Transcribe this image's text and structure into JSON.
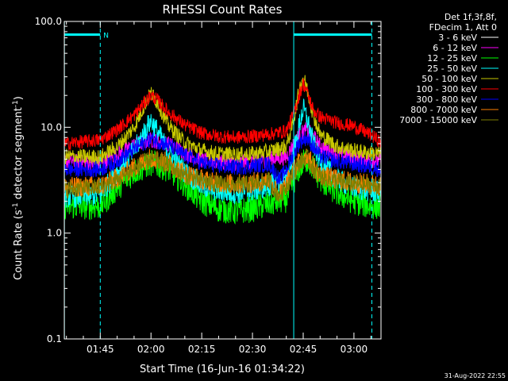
{
  "chart_data": {
    "type": "line",
    "title": "RHESSI Count Rates",
    "xlabel": "Start Time (16-Jun-16 01:34:22)",
    "ylabel_parts": [
      "Count Rate (s",
      "-1",
      " detector segment",
      "-1",
      ")"
    ],
    "y_scale": "log",
    "ylim": [
      0.1,
      100.0
    ],
    "y_ticks": [
      "100.0",
      "10.0",
      "1.0",
      "0.1"
    ],
    "x_range_minutes": [
      34.37,
      93.0
    ],
    "x_ticks": [
      {
        "label": "01:45",
        "minute": 45
      },
      {
        "label": "02:00",
        "minute": 60
      },
      {
        "label": "02:15",
        "minute": 75
      },
      {
        "label": "02:30",
        "minute": 90
      },
      {
        "label": "02:45",
        "minute": 105
      },
      {
        "label": "03:00",
        "minute": 120
      }
    ],
    "legend_header": [
      "Det 1f,3f,8f,",
      "FDecim 1, Att 0"
    ],
    "legend_position": "right-outside",
    "series": [
      {
        "name": "3 - 6 keV",
        "color": "#000000",
        "legend_color": "#ffffff",
        "keypoints": [
          [
            34.4,
            1.5
          ],
          [
            45,
            1.4
          ],
          [
            50,
            2.3
          ],
          [
            55,
            3.3
          ],
          [
            60,
            4.0
          ],
          [
            65,
            3.5
          ],
          [
            70,
            2.3
          ],
          [
            75,
            1.5
          ],
          [
            80,
            1.2
          ],
          [
            85,
            1.1
          ],
          [
            90,
            1.2
          ],
          [
            95,
            1.4
          ],
          [
            100,
            1.6
          ],
          [
            102,
            2.2
          ],
          [
            104,
            3.3
          ],
          [
            106,
            4.0
          ],
          [
            108,
            3.4
          ],
          [
            110,
            2.6
          ],
          [
            115,
            1.9
          ],
          [
            120,
            1.4
          ],
          [
            125,
            1.3
          ],
          [
            128,
            1.3
          ]
        ]
      },
      {
        "name": "6 - 12 keV",
        "color": "#ff00ff",
        "keypoints": [
          [
            34.4,
            4.8
          ],
          [
            45,
            4.5
          ],
          [
            50,
            5.5
          ],
          [
            55,
            6.8
          ],
          [
            60,
            7.6
          ],
          [
            65,
            7.0
          ],
          [
            70,
            5.8
          ],
          [
            75,
            4.9
          ],
          [
            80,
            4.7
          ],
          [
            85,
            4.6
          ],
          [
            90,
            4.7
          ],
          [
            95,
            5.0
          ],
          [
            100,
            5.2
          ],
          [
            102,
            6.8
          ],
          [
            104,
            8.6
          ],
          [
            106,
            9.5
          ],
          [
            108,
            8.2
          ],
          [
            110,
            6.6
          ],
          [
            115,
            5.6
          ],
          [
            120,
            5.1
          ],
          [
            125,
            4.9
          ],
          [
            128,
            4.8
          ]
        ]
      },
      {
        "name": "12 - 25 keV",
        "color": "#00ff00",
        "keypoints": [
          [
            34.4,
            1.8
          ],
          [
            45,
            1.8
          ],
          [
            50,
            2.7
          ],
          [
            55,
            3.8
          ],
          [
            60,
            4.6
          ],
          [
            65,
            4.1
          ],
          [
            70,
            2.9
          ],
          [
            75,
            2.0
          ],
          [
            80,
            1.7
          ],
          [
            85,
            1.6
          ],
          [
            90,
            1.7
          ],
          [
            95,
            1.9
          ],
          [
            100,
            2.1
          ],
          [
            102,
            3.0
          ],
          [
            104,
            4.2
          ],
          [
            106,
            5.0
          ],
          [
            108,
            4.2
          ],
          [
            110,
            3.2
          ],
          [
            115,
            2.4
          ],
          [
            120,
            2.0
          ],
          [
            125,
            1.8
          ],
          [
            128,
            1.8
          ]
        ]
      },
      {
        "name": "25 - 50 keV",
        "color": "#00ffff",
        "keypoints": [
          [
            34.4,
            2.2
          ],
          [
            45,
            2.3
          ],
          [
            50,
            3.8
          ],
          [
            55,
            6.0
          ],
          [
            58,
            9.0
          ],
          [
            60,
            11.5
          ],
          [
            62,
            9.0
          ],
          [
            65,
            6.0
          ],
          [
            70,
            3.8
          ],
          [
            75,
            2.8
          ],
          [
            80,
            2.5
          ],
          [
            85,
            2.4
          ],
          [
            90,
            2.5
          ],
          [
            95,
            2.8
          ],
          [
            100,
            3.2
          ],
          [
            102,
            5.2
          ],
          [
            104,
            11.0
          ],
          [
            105,
            15.0
          ],
          [
            106,
            12.5
          ],
          [
            108,
            7.0
          ],
          [
            110,
            4.8
          ],
          [
            115,
            3.2
          ],
          [
            120,
            2.7
          ],
          [
            125,
            2.5
          ],
          [
            128,
            2.4
          ]
        ]
      },
      {
        "name": "50 - 100 keV",
        "color": "#c8c800",
        "keypoints": [
          [
            34.4,
            5.3
          ],
          [
            45,
            5.2
          ],
          [
            50,
            6.5
          ],
          [
            55,
            10.0
          ],
          [
            58,
            16.0
          ],
          [
            60,
            21.0
          ],
          [
            62,
            17.0
          ],
          [
            65,
            10.5
          ],
          [
            70,
            7.2
          ],
          [
            75,
            6.0
          ],
          [
            80,
            5.6
          ],
          [
            85,
            5.5
          ],
          [
            90,
            5.6
          ],
          [
            95,
            5.9
          ],
          [
            100,
            6.6
          ],
          [
            102,
            11.0
          ],
          [
            104,
            24.0
          ],
          [
            105,
            30.0
          ],
          [
            106,
            24.0
          ],
          [
            108,
            13.0
          ],
          [
            110,
            8.5
          ],
          [
            115,
            6.6
          ],
          [
            120,
            6.0
          ],
          [
            125,
            5.7
          ],
          [
            128,
            5.6
          ]
        ]
      },
      {
        "name": "100 - 300 keV",
        "color": "#ff0000",
        "keypoints": [
          [
            34.4,
            7.0
          ],
          [
            45,
            7.6
          ],
          [
            50,
            9.5
          ],
          [
            55,
            13.0
          ],
          [
            58,
            17.0
          ],
          [
            60,
            20.0
          ],
          [
            62,
            18.0
          ],
          [
            65,
            14.0
          ],
          [
            70,
            10.5
          ],
          [
            75,
            8.8
          ],
          [
            80,
            8.2
          ],
          [
            85,
            8.0
          ],
          [
            90,
            8.2
          ],
          [
            95,
            8.6
          ],
          [
            100,
            9.2
          ],
          [
            102,
            13.0
          ],
          [
            104,
            21.0
          ],
          [
            105,
            26.0
          ],
          [
            106,
            22.0
          ],
          [
            108,
            14.5
          ],
          [
            110,
            12.5
          ],
          [
            115,
            11.0
          ],
          [
            120,
            10.2
          ],
          [
            125,
            8.5
          ],
          [
            128,
            7.2
          ]
        ]
      },
      {
        "name": "300 - 800 keV",
        "color": "#0000ff",
        "keypoints": [
          [
            34.4,
            4.0
          ],
          [
            45,
            4.0
          ],
          [
            50,
            4.8
          ],
          [
            55,
            6.2
          ],
          [
            60,
            7.8
          ],
          [
            65,
            6.8
          ],
          [
            70,
            5.4
          ],
          [
            75,
            4.6
          ],
          [
            80,
            4.3
          ],
          [
            85,
            4.2
          ],
          [
            90,
            4.3
          ],
          [
            95,
            4.5
          ],
          [
            98,
            3.2
          ],
          [
            100,
            4.0
          ],
          [
            102,
            5.5
          ],
          [
            104,
            7.3
          ],
          [
            106,
            8.0
          ],
          [
            108,
            6.5
          ],
          [
            110,
            5.3
          ],
          [
            115,
            4.8
          ],
          [
            120,
            4.5
          ],
          [
            125,
            4.2
          ],
          [
            128,
            4.0
          ]
        ]
      },
      {
        "name": "800 - 7000 keV",
        "color": "#ff7f00",
        "keypoints": [
          [
            34.4,
            2.7
          ],
          [
            45,
            2.8
          ],
          [
            50,
            3.3
          ],
          [
            55,
            4.2
          ],
          [
            60,
            5.2
          ],
          [
            65,
            4.6
          ],
          [
            70,
            3.7
          ],
          [
            75,
            3.2
          ],
          [
            80,
            3.0
          ],
          [
            85,
            2.9
          ],
          [
            90,
            3.0
          ],
          [
            95,
            3.2
          ],
          [
            98,
            2.3
          ],
          [
            100,
            2.9
          ],
          [
            102,
            3.8
          ],
          [
            104,
            4.8
          ],
          [
            106,
            5.5
          ],
          [
            108,
            4.3
          ],
          [
            110,
            3.5
          ],
          [
            115,
            3.2
          ],
          [
            120,
            3.0
          ],
          [
            125,
            2.9
          ],
          [
            128,
            2.8
          ]
        ]
      },
      {
        "name": "7000 - 15000 keV",
        "color": "#7f7f00",
        "keypoints": [
          [
            34.4,
            2.6
          ],
          [
            45,
            2.7
          ],
          [
            50,
            3.2
          ],
          [
            55,
            4.0
          ],
          [
            60,
            5.0
          ],
          [
            65,
            4.4
          ],
          [
            70,
            3.5
          ],
          [
            75,
            3.1
          ],
          [
            80,
            2.9
          ],
          [
            85,
            2.8
          ],
          [
            90,
            2.9
          ],
          [
            95,
            3.1
          ],
          [
            98,
            2.2
          ],
          [
            100,
            2.8
          ],
          [
            102,
            3.6
          ],
          [
            104,
            4.6
          ],
          [
            106,
            5.2
          ],
          [
            108,
            4.1
          ],
          [
            110,
            3.4
          ],
          [
            115,
            3.1
          ],
          [
            120,
            2.9
          ],
          [
            125,
            2.8
          ],
          [
            128,
            2.7
          ]
        ]
      }
    ],
    "attenuator_markers": {
      "color": "#00ffff",
      "label": "N",
      "segments": [
        [
          34.4,
          45.0
        ],
        [
          102.2,
          125.3
        ]
      ],
      "level": 75.0
    },
    "timestamp": "31-Aug-2022 22:55"
  }
}
